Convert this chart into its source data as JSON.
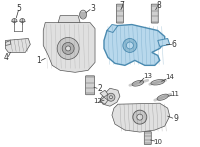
{
  "background_color": "#ffffff",
  "highlighted_color": "#b8d8ec",
  "highlighted_stroke": "#4a8ab0",
  "part_color": "#e0e0e0",
  "part_stroke": "#555555",
  "bolt_color": "#d0d0d0",
  "bolt_stroke": "#555555",
  "label_color": "#222222",
  "label_fontsize": 5.5,
  "line_color": "#333333"
}
